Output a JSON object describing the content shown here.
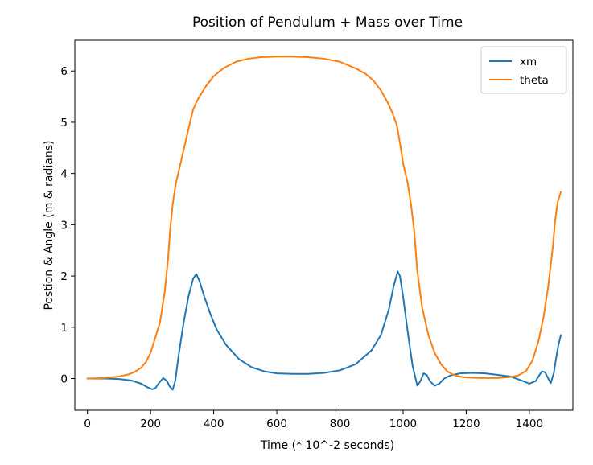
{
  "chart_data": {
    "type": "line",
    "title": "Position of Pendulum + Mass over Time",
    "xlabel": "Time (* 10^-2 seconds)",
    "ylabel": "Postion & Angle (m & radians)",
    "xlim": [
      -40,
      1538
    ],
    "ylim": [
      -0.62,
      6.6
    ],
    "xticks": [
      0,
      200,
      400,
      600,
      800,
      1000,
      1200,
      1400
    ],
    "yticks": [
      0,
      1,
      2,
      3,
      4,
      5,
      6
    ],
    "grid": false,
    "legend_position": "top-right",
    "series": [
      {
        "name": "xm",
        "color": "#1f77b4",
        "x": [
          0,
          60,
          100,
          140,
          170,
          190,
          205,
          215,
          225,
          240,
          252,
          260,
          270,
          278,
          290,
          305,
          320,
          335,
          345,
          355,
          370,
          390,
          410,
          440,
          480,
          520,
          560,
          600,
          650,
          700,
          750,
          800,
          850,
          900,
          930,
          955,
          970,
          983,
          990,
          1000,
          1015,
          1030,
          1045,
          1055,
          1065,
          1075,
          1085,
          1100,
          1115,
          1130,
          1150,
          1180,
          1220,
          1260,
          1300,
          1340,
          1380,
          1400,
          1420,
          1430,
          1440,
          1450,
          1460,
          1468,
          1478,
          1485,
          1492,
          1500
        ],
        "y": [
          0,
          0,
          -0.01,
          -0.04,
          -0.1,
          -0.17,
          -0.21,
          -0.19,
          -0.1,
          0.01,
          -0.05,
          -0.15,
          -0.22,
          -0.05,
          0.5,
          1.1,
          1.6,
          1.95,
          2.04,
          1.9,
          1.6,
          1.25,
          0.95,
          0.65,
          0.38,
          0.22,
          0.14,
          0.1,
          0.09,
          0.09,
          0.11,
          0.16,
          0.28,
          0.55,
          0.85,
          1.35,
          1.8,
          2.09,
          2.0,
          1.6,
          0.9,
          0.25,
          -0.14,
          -0.05,
          0.1,
          0.07,
          -0.05,
          -0.14,
          -0.1,
          0.0,
          0.06,
          0.1,
          0.11,
          0.1,
          0.07,
          0.04,
          -0.05,
          -0.1,
          -0.05,
          0.05,
          0.14,
          0.12,
          0.0,
          -0.09,
          0.12,
          0.4,
          0.65,
          0.85
        ]
      },
      {
        "name": "theta",
        "color": "#ff7f0e",
        "x": [
          0,
          50,
          100,
          130,
          150,
          170,
          185,
          200,
          215,
          230,
          245,
          255,
          262,
          270,
          280,
          295,
          310,
          325,
          335,
          350,
          375,
          400,
          430,
          470,
          510,
          550,
          600,
          650,
          700,
          750,
          800,
          850,
          880,
          905,
          930,
          950,
          965,
          980,
          990,
          1000,
          1015,
          1025,
          1035,
          1045,
          1060,
          1080,
          1100,
          1120,
          1140,
          1160,
          1180,
          1200,
          1250,
          1300,
          1340,
          1365,
          1390,
          1410,
          1430,
          1445,
          1460,
          1475,
          1482,
          1490,
          1500
        ],
        "y": [
          0,
          0.01,
          0.04,
          0.08,
          0.13,
          0.21,
          0.32,
          0.5,
          0.8,
          1.1,
          1.7,
          2.3,
          2.9,
          3.4,
          3.8,
          4.2,
          4.6,
          5.0,
          5.25,
          5.45,
          5.7,
          5.9,
          6.05,
          6.18,
          6.24,
          6.27,
          6.28,
          6.28,
          6.27,
          6.24,
          6.18,
          6.05,
          5.95,
          5.82,
          5.62,
          5.4,
          5.2,
          4.95,
          4.6,
          4.2,
          3.8,
          3.4,
          2.9,
          2.1,
          1.4,
          0.85,
          0.5,
          0.28,
          0.14,
          0.07,
          0.04,
          0.02,
          0.01,
          0.01,
          0.03,
          0.06,
          0.15,
          0.35,
          0.75,
          1.2,
          1.8,
          2.6,
          3.1,
          3.45,
          3.64
        ]
      }
    ]
  }
}
